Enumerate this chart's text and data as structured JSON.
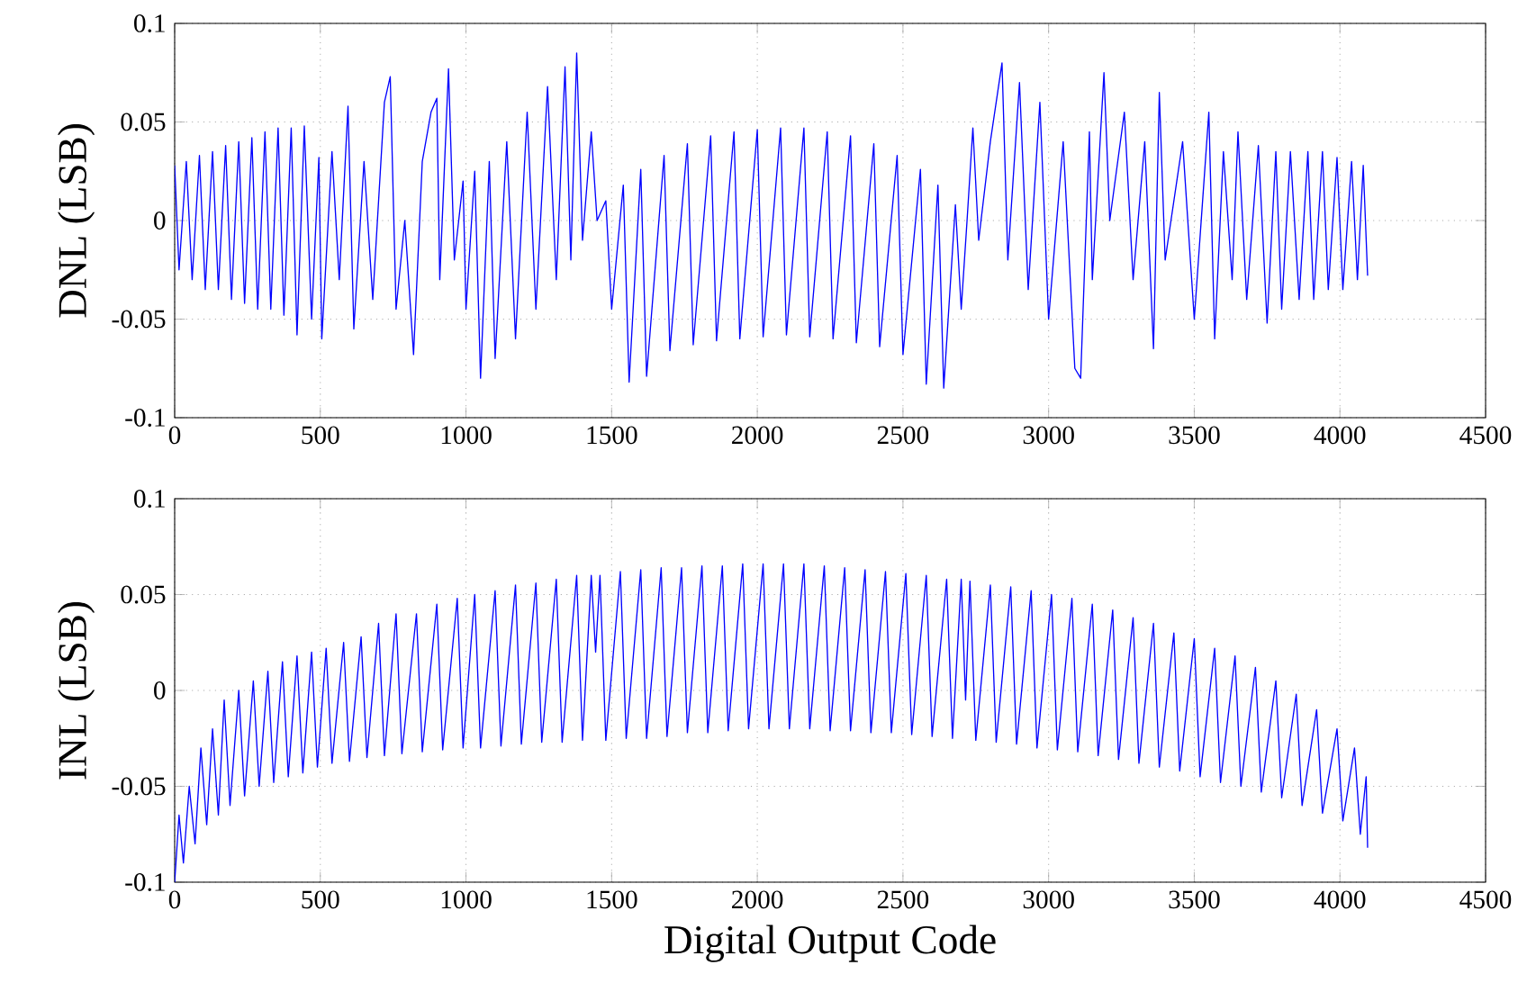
{
  "chart_data": [
    {
      "type": "line",
      "ylabel": "DNL (LSB)",
      "xlim": [
        0,
        4500
      ],
      "ylim": [
        -0.1,
        0.1
      ],
      "xticks": [
        0,
        500,
        1000,
        1500,
        2000,
        2500,
        3000,
        3500,
        4000,
        4500
      ],
      "yticks": [
        -0.1,
        -0.05,
        0,
        0.05,
        0.1
      ],
      "grid": true,
      "line_style": "solid",
      "marker": "none",
      "series": [
        {
          "color": "#0000ff",
          "x": [
            0,
            15,
            40,
            60,
            85,
            105,
            130,
            150,
            175,
            195,
            220,
            240,
            265,
            285,
            310,
            330,
            355,
            375,
            400,
            420,
            445,
            470,
            495,
            505,
            540,
            565,
            595,
            615,
            650,
            680,
            720,
            740,
            760,
            790,
            820,
            850,
            880,
            900,
            910,
            940,
            960,
            990,
            1000,
            1030,
            1050,
            1080,
            1100,
            1140,
            1170,
            1210,
            1240,
            1280,
            1310,
            1340,
            1360,
            1380,
            1400,
            1430,
            1450,
            1480,
            1500,
            1540,
            1560,
            1600,
            1620,
            1680,
            1700,
            1760,
            1780,
            1840,
            1860,
            1920,
            1940,
            2000,
            2020,
            2080,
            2100,
            2160,
            2180,
            2240,
            2260,
            2320,
            2340,
            2400,
            2420,
            2480,
            2500,
            2560,
            2580,
            2620,
            2640,
            2680,
            2700,
            2720,
            2740,
            2760,
            2800,
            2840,
            2860,
            2900,
            2930,
            2970,
            3000,
            3050,
            3090,
            3110,
            3140,
            3150,
            3190,
            3210,
            3260,
            3290,
            3330,
            3360,
            3380,
            3400,
            3460,
            3500,
            3550,
            3570,
            3600,
            3630,
            3650,
            3680,
            3720,
            3750,
            3780,
            3800,
            3830,
            3860,
            3890,
            3910,
            3940,
            3960,
            3990,
            4010,
            4040,
            4060,
            4080,
            4095
          ],
          "values": [
            0.028,
            -0.025,
            0.03,
            -0.03,
            0.033,
            -0.035,
            0.035,
            -0.035,
            0.038,
            -0.04,
            0.04,
            -0.042,
            0.042,
            -0.045,
            0.045,
            -0.045,
            0.047,
            -0.048,
            0.047,
            -0.058,
            0.048,
            -0.05,
            0.032,
            -0.06,
            0.035,
            -0.03,
            0.058,
            -0.055,
            0.03,
            -0.04,
            0.06,
            0.073,
            -0.045,
            0.0,
            -0.068,
            0.03,
            0.055,
            0.062,
            -0.03,
            0.077,
            -0.02,
            0.02,
            -0.045,
            0.025,
            -0.08,
            0.03,
            -0.07,
            0.04,
            -0.06,
            0.055,
            -0.045,
            0.068,
            -0.03,
            0.078,
            -0.02,
            0.085,
            -0.01,
            0.045,
            0.0,
            0.01,
            -0.045,
            0.018,
            -0.082,
            0.026,
            -0.079,
            0.033,
            -0.066,
            0.039,
            -0.063,
            0.043,
            -0.061,
            0.045,
            -0.06,
            0.046,
            -0.059,
            0.047,
            -0.058,
            0.047,
            -0.059,
            0.045,
            -0.06,
            0.043,
            -0.062,
            0.039,
            -0.064,
            0.033,
            -0.068,
            0.026,
            -0.083,
            0.018,
            -0.085,
            0.008,
            -0.045,
            0.0,
            0.047,
            -0.01,
            0.04,
            0.08,
            -0.02,
            0.07,
            -0.035,
            0.06,
            -0.05,
            0.04,
            -0.075,
            -0.08,
            0.045,
            -0.03,
            0.075,
            0.0,
            0.055,
            -0.03,
            0.04,
            -0.065,
            0.065,
            -0.02,
            0.04,
            -0.05,
            0.055,
            -0.06,
            0.035,
            -0.03,
            0.045,
            -0.04,
            0.038,
            -0.052,
            0.035,
            -0.045,
            0.035,
            -0.04,
            0.035,
            -0.04,
            0.035,
            -0.035,
            0.032,
            -0.035,
            0.03,
            -0.03,
            0.028,
            -0.028
          ]
        }
      ]
    },
    {
      "type": "line",
      "xlabel": "Digital Output Code",
      "ylabel": "INL (LSB)",
      "xlim": [
        0,
        4500
      ],
      "ylim": [
        -0.1,
        0.1
      ],
      "xticks": [
        0,
        500,
        1000,
        1500,
        2000,
        2500,
        3000,
        3500,
        4000,
        4500
      ],
      "yticks": [
        -0.1,
        -0.05,
        0,
        0.05,
        0.1
      ],
      "grid": true,
      "line_style": "solid",
      "marker": "none",
      "series": [
        {
          "color": "#0000ff",
          "x": [
            0,
            15,
            30,
            50,
            70,
            90,
            110,
            130,
            150,
            170,
            190,
            220,
            240,
            270,
            290,
            320,
            340,
            370,
            390,
            420,
            440,
            470,
            490,
            520,
            540,
            580,
            600,
            640,
            660,
            700,
            720,
            760,
            780,
            830,
            850,
            900,
            920,
            970,
            990,
            1030,
            1050,
            1100,
            1120,
            1170,
            1190,
            1240,
            1260,
            1310,
            1330,
            1380,
            1400,
            1430,
            1445,
            1460,
            1480,
            1530,
            1550,
            1600,
            1620,
            1670,
            1690,
            1740,
            1760,
            1810,
            1830,
            1880,
            1900,
            1950,
            1970,
            2020,
            2040,
            2090,
            2110,
            2160,
            2180,
            2230,
            2250,
            2300,
            2320,
            2370,
            2390,
            2440,
            2460,
            2510,
            2530,
            2580,
            2600,
            2650,
            2670,
            2700,
            2715,
            2730,
            2750,
            2800,
            2820,
            2870,
            2890,
            2940,
            2960,
            3010,
            3030,
            3080,
            3100,
            3150,
            3170,
            3220,
            3240,
            3290,
            3310,
            3360,
            3380,
            3430,
            3450,
            3500,
            3520,
            3570,
            3590,
            3640,
            3660,
            3710,
            3730,
            3780,
            3800,
            3850,
            3870,
            3920,
            3940,
            3990,
            4010,
            4050,
            4070,
            4090,
            4095
          ],
          "values": [
            -0.1,
            -0.065,
            -0.09,
            -0.05,
            -0.08,
            -0.03,
            -0.07,
            -0.02,
            -0.065,
            -0.005,
            -0.06,
            0.0,
            -0.055,
            0.005,
            -0.05,
            0.01,
            -0.048,
            0.015,
            -0.045,
            0.018,
            -0.043,
            0.02,
            -0.04,
            0.022,
            -0.038,
            0.025,
            -0.037,
            0.028,
            -0.035,
            0.035,
            -0.034,
            0.04,
            -0.033,
            0.04,
            -0.032,
            0.045,
            -0.031,
            0.048,
            -0.03,
            0.05,
            -0.03,
            0.052,
            -0.029,
            0.055,
            -0.028,
            0.056,
            -0.027,
            0.058,
            -0.027,
            0.06,
            -0.026,
            0.06,
            0.02,
            0.06,
            -0.026,
            0.062,
            -0.025,
            0.063,
            -0.025,
            0.064,
            -0.024,
            0.064,
            -0.022,
            0.065,
            -0.022,
            0.065,
            -0.021,
            0.066,
            -0.02,
            0.066,
            -0.02,
            0.066,
            -0.02,
            0.066,
            -0.02,
            0.065,
            -0.021,
            0.064,
            -0.021,
            0.063,
            -0.022,
            0.062,
            -0.022,
            0.061,
            -0.023,
            0.06,
            -0.024,
            0.058,
            -0.025,
            0.058,
            -0.005,
            0.057,
            -0.026,
            0.055,
            -0.027,
            0.054,
            -0.028,
            0.052,
            -0.03,
            0.05,
            -0.031,
            0.048,
            -0.032,
            0.045,
            -0.034,
            0.042,
            -0.036,
            0.038,
            -0.038,
            0.035,
            -0.04,
            0.03,
            -0.042,
            0.027,
            -0.045,
            0.022,
            -0.048,
            0.018,
            -0.05,
            0.012,
            -0.053,
            0.005,
            -0.056,
            -0.002,
            -0.06,
            -0.01,
            -0.064,
            -0.02,
            -0.068,
            -0.03,
            -0.075,
            -0.045,
            -0.082
          ]
        }
      ]
    }
  ]
}
